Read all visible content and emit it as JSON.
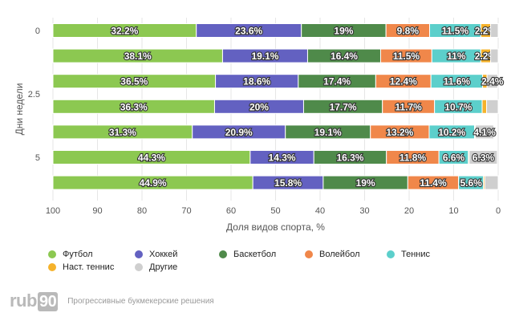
{
  "chart_data": {
    "type": "bar",
    "orientation": "horizontal-stacked",
    "ylabel": "Дни недели",
    "xlabel": "Доля видов спорта, %",
    "xlim": [
      100,
      0
    ],
    "xticks": [
      "100",
      "90",
      "80",
      "70",
      "60",
      "50",
      "40",
      "30",
      "20",
      "10",
      "0"
    ],
    "yticks": [
      "0",
      "2.5",
      "5"
    ],
    "grid": true,
    "rows": 7,
    "series": [
      {
        "name": "Футбол",
        "color": "#8cc851",
        "values": [
          32.2,
          38.1,
          36.5,
          36.3,
          31.3,
          44.3,
          44.9
        ],
        "labels": [
          "32.2%",
          "38.1%",
          "36.5%",
          "36.3%",
          "31.3%",
          "44.3%",
          "44.9%"
        ]
      },
      {
        "name": "Хоккей",
        "color": "#6361c1",
        "values": [
          23.6,
          19.1,
          18.6,
          20,
          20.9,
          14.3,
          15.8
        ],
        "labels": [
          "23.6%",
          "19.1%",
          "18.6%",
          "20%",
          "20.9%",
          "14.3%",
          "15.8%"
        ]
      },
      {
        "name": "Баскетбол",
        "color": "#4f8a4a",
        "values": [
          19,
          16.4,
          17.4,
          17.7,
          19.1,
          16.3,
          19
        ],
        "labels": [
          "19%",
          "16.4%",
          "17.4%",
          "17.7%",
          "19.1%",
          "16.3%",
          "19%"
        ]
      },
      {
        "name": "Волейбол",
        "color": "#f0874a",
        "values": [
          9.8,
          11.5,
          12.4,
          11.7,
          13.2,
          11.8,
          11.4
        ],
        "labels": [
          "9.8%",
          "11.5%",
          "12.4%",
          "11.7%",
          "13.2%",
          "11.8%",
          "11.4%"
        ]
      },
      {
        "name": "Теннис",
        "color": "#5ccfcb",
        "values": [
          11.5,
          11,
          11.6,
          10.7,
          10.2,
          6.6,
          5.6
        ],
        "labels": [
          "11.5%",
          "11%",
          "11.6%",
          "10.7%",
          "10.2%",
          "6.6%",
          "5.6%"
        ]
      },
      {
        "name": "Наст. теннис",
        "color": "#f5b22b",
        "values": [
          2.2,
          2.2,
          1,
          1,
          0.2,
          0.2,
          0.3
        ],
        "labels": [
          "2.2%",
          "2.2%",
          "",
          "",
          "",
          "",
          ""
        ]
      },
      {
        "name": "Другие",
        "color": "#cfcfcf",
        "values": [
          1.7,
          1.7,
          2.4,
          2.6,
          4.1,
          6.3,
          3
        ],
        "labels": [
          "",
          "",
          "2.4%",
          "",
          "4.1%",
          "6.3%",
          ""
        ]
      }
    ]
  },
  "legend": [
    {
      "name": "Футбол",
      "color": "#8cc851"
    },
    {
      "name": "Хоккей",
      "color": "#6361c1"
    },
    {
      "name": "Баскетбол",
      "color": "#4f8a4a"
    },
    {
      "name": "Волейбол",
      "color": "#f0874a"
    },
    {
      "name": "Теннис",
      "color": "#5ccfcb"
    },
    {
      "name": "Наст. теннис",
      "color": "#f5b22b"
    },
    {
      "name": "Другие",
      "color": "#cfcfcf"
    }
  ],
  "brand": {
    "logo_text": "rub",
    "logo_number": "90",
    "tagline": "Прогрессивные букмекерские решения"
  }
}
